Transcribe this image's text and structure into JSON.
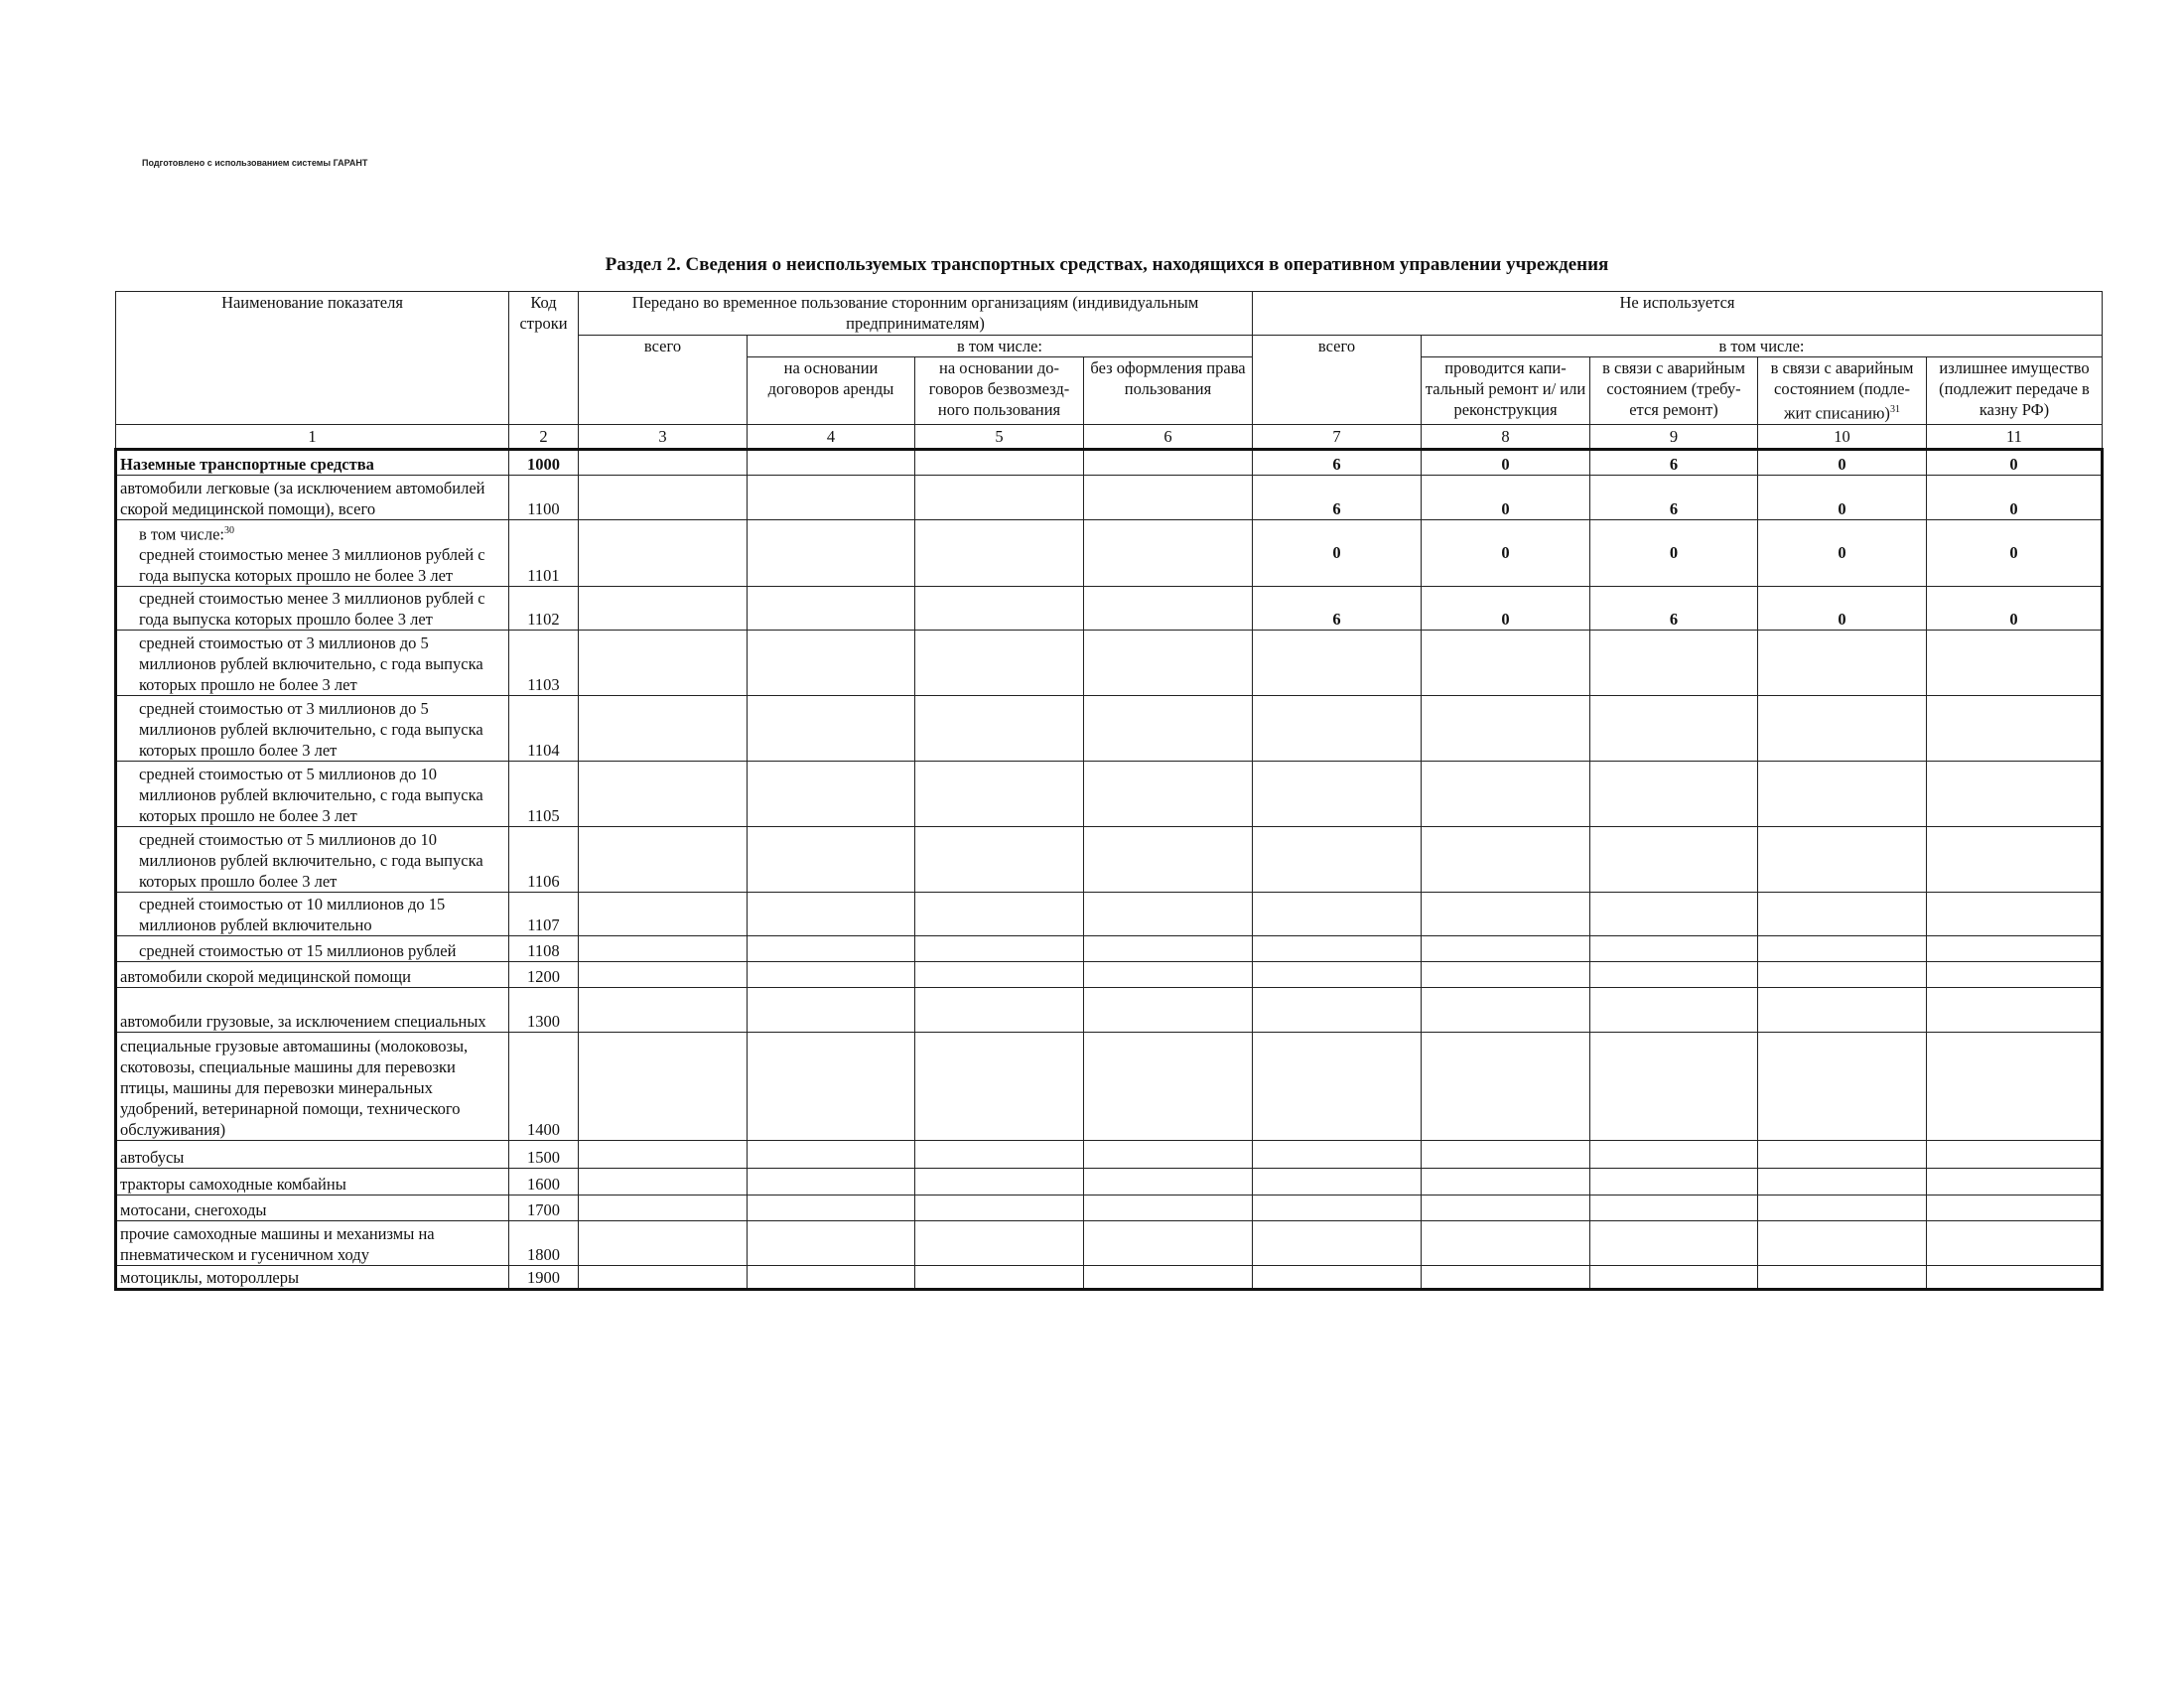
{
  "header_note": "Подготовлено с использованием системы ГАРАНТ",
  "title": "Раздел 2. Сведения о неиспользуемых транспортных средствах, находящихся в оперативном управлении учреждения",
  "columns": {
    "name": "Наименование показателя",
    "code": "Код строки",
    "transferred": "Передано во временное пользование сторонним организациям (индивидуальным предпринимателям)",
    "transferred_total": "всего",
    "incl": "в том числе:",
    "lease": "на основании договоров аренды",
    "free_use": "на основании до-говоров безвозмезд-ного пользования",
    "no_rights": "без оформления права пользования",
    "unused": "Не используется",
    "unused_total": "всего",
    "incl2": "в том числе:",
    "repair_capital": "проводится капи-тальный ремонт и/ или реконструкция",
    "emergency_repair": "в связи с аварийным состоянием (требу-ется ремонт)",
    "emergency_writeoff": "в связи с аварийным состоянием (подле-жит списанию)",
    "emergency_writeoff_sup": "31",
    "surplus": "излишнее имущество (подлежит передаче в казну РФ)",
    "numbers": [
      "1",
      "2",
      "3",
      "4",
      "5",
      "6",
      "7",
      "8",
      "9",
      "10",
      "11"
    ]
  },
  "rows": [
    {
      "name": "Наземные транспортные средства",
      "code": "1000",
      "values": [
        "",
        "",
        "",
        "",
        "6",
        "0",
        "6",
        "0",
        "0"
      ],
      "bold": true
    },
    {
      "name": "автомобили легковые (за исключением автомобилей скорой медицинской помощи), всего",
      "code": "1100",
      "values": [
        "",
        "",
        "",
        "",
        "6",
        "0",
        "6",
        "0",
        "0"
      ]
    },
    {
      "prefix": "в том числе:",
      "prefix_sup": "30",
      "name": "средней стоимостью менее 3 миллионов рублей с года выпуска которых прошло не более 3 лет",
      "code": "1101",
      "values": [
        "",
        "",
        "",
        "",
        "0",
        "0",
        "0",
        "0",
        "0"
      ]
    },
    {
      "name": "средней стоимостью менее 3 миллионов рублей с года выпуска которых прошло более 3 лет",
      "code": "1102",
      "values": [
        "",
        "",
        "",
        "",
        "6",
        "0",
        "6",
        "0",
        "0"
      ]
    },
    {
      "name": "средней стоимостью от 3 миллионов до 5 миллионов рублей включительно, с года выпуска которых прошло не более 3 лет",
      "code": "1103",
      "values": [
        "",
        "",
        "",
        "",
        "",
        "",
        "",
        "",
        ""
      ]
    },
    {
      "name": "средней стоимостью от 3 миллионов до 5 миллионов рублей включительно, с года выпуска которых прошло более 3 лет",
      "code": "1104",
      "values": [
        "",
        "",
        "",
        "",
        "",
        "",
        "",
        "",
        ""
      ]
    },
    {
      "name": "средней стоимостью от 5 миллионов до 10 миллионов рублей включительно, с года выпуска которых прошло не более 3 лет",
      "code": "1105",
      "values": [
        "",
        "",
        "",
        "",
        "",
        "",
        "",
        "",
        ""
      ]
    },
    {
      "name": "средней стоимостью от 5 миллионов до 10 миллионов рублей включительно, с года выпуска которых прошло более 3 лет",
      "code": "1106",
      "values": [
        "",
        "",
        "",
        "",
        "",
        "",
        "",
        "",
        ""
      ]
    },
    {
      "name": "средней стоимостью от 10 миллионов до 15 миллионов рублей включительно",
      "code": "1107",
      "values": [
        "",
        "",
        "",
        "",
        "",
        "",
        "",
        "",
        ""
      ]
    },
    {
      "name": "средней стоимостью от 15 миллионов рублей",
      "code": "1108",
      "values": [
        "",
        "",
        "",
        "",
        "",
        "",
        "",
        "",
        ""
      ]
    },
    {
      "name": "автомобили скорой медицинской помощи",
      "code": "1200",
      "values": [
        "",
        "",
        "",
        "",
        "",
        "",
        "",
        "",
        ""
      ]
    },
    {
      "name": "автомобили грузовые, за исключением специальных",
      "code": "1300",
      "values": [
        "",
        "",
        "",
        "",
        "",
        "",
        "",
        "",
        ""
      ]
    },
    {
      "name": "специальные грузовые автомашины (молоковозы, скотовозы, специальные машины для перевозки птицы, машины для перевозки минеральных удобрений, ветеринарной помощи, технического обслуживания)",
      "code": "1400",
      "values": [
        "",
        "",
        "",
        "",
        "",
        "",
        "",
        "",
        ""
      ]
    },
    {
      "name": "автобусы",
      "code": "1500",
      "values": [
        "",
        "",
        "",
        "",
        "",
        "",
        "",
        "",
        ""
      ]
    },
    {
      "name": "тракторы самоходные комбайны",
      "code": "1600",
      "values": [
        "",
        "",
        "",
        "",
        "",
        "",
        "",
        "",
        ""
      ]
    },
    {
      "name": "мотосани, снегоходы",
      "code": "1700",
      "values": [
        "",
        "",
        "",
        "",
        "",
        "",
        "",
        "",
        ""
      ]
    },
    {
      "name": "прочие самоходные машины и механизмы на пневматическом и гусеничном ходу",
      "code": "1800",
      "values": [
        "",
        "",
        "",
        "",
        "",
        "",
        "",
        "",
        ""
      ]
    },
    {
      "name": "мотоциклы, мотороллеры",
      "code": "1900",
      "values": [
        "",
        "",
        "",
        "",
        "",
        "",
        "",
        "",
        ""
      ]
    }
  ]
}
